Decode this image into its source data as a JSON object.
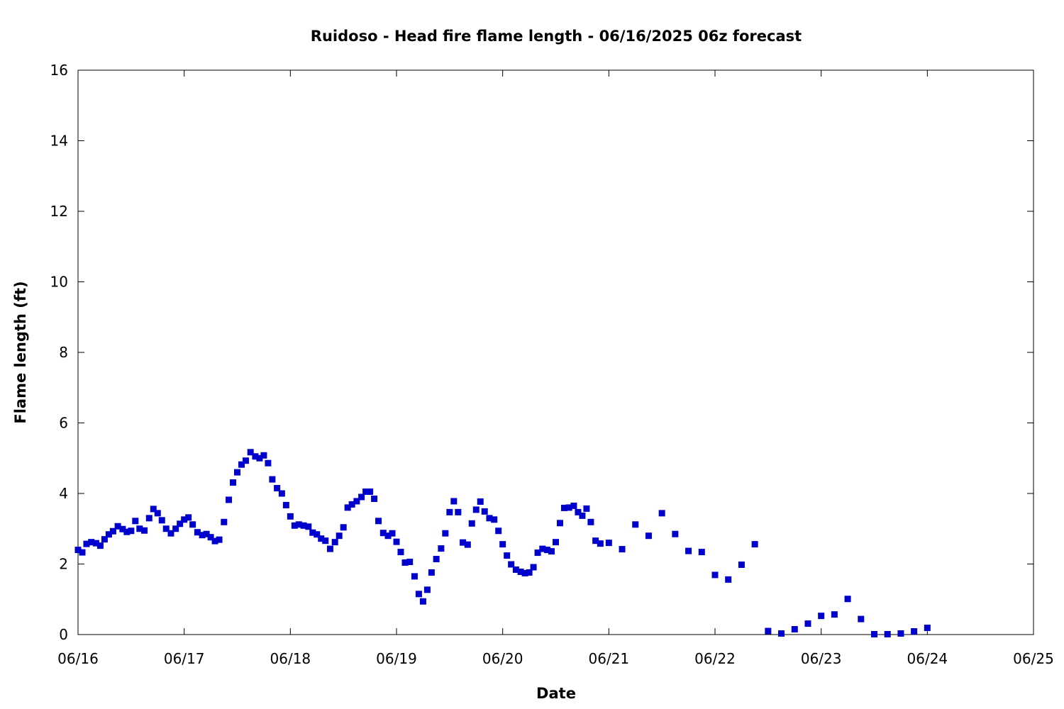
{
  "chart_data": {
    "type": "scatter",
    "title": "Ruidoso - Head fire flame length - 06/16/2025 06z forecast",
    "xlabel": "Date",
    "ylabel": "Flame length (ft)",
    "xlim": [
      "06/16",
      "06/25"
    ],
    "ylim": [
      0,
      16
    ],
    "xticks": [
      "06/16",
      "06/17",
      "06/18",
      "06/19",
      "06/20",
      "06/21",
      "06/22",
      "06/23",
      "06/24",
      "06/25"
    ],
    "yticks": [
      "0",
      "2",
      "4",
      "6",
      "8",
      "10",
      "12",
      "14",
      "16"
    ],
    "grid": false,
    "legend": "none",
    "marker": "square",
    "color": "#0000cc",
    "x_unit": "days from 06/16 00z",
    "series": [
      {
        "x": [
          0.0,
          0.04,
          0.08,
          0.125,
          0.17,
          0.21,
          0.25,
          0.29,
          0.33,
          0.375,
          0.42,
          0.46,
          0.5,
          0.54,
          0.58,
          0.625,
          0.67,
          0.71,
          0.75,
          0.79,
          0.83,
          0.875,
          0.92,
          0.96,
          1.0,
          1.04,
          1.08,
          1.125,
          1.17,
          1.21,
          1.25,
          1.29,
          1.33,
          1.375,
          1.42,
          1.46,
          1.5,
          1.54,
          1.58,
          1.625,
          1.67,
          1.71,
          1.75,
          1.79,
          1.83,
          1.875,
          1.92,
          1.96,
          2.0,
          2.04,
          2.08,
          2.125,
          2.17,
          2.21,
          2.25,
          2.29,
          2.33,
          2.375,
          2.42,
          2.46,
          2.5,
          2.54,
          2.58,
          2.625,
          2.67,
          2.71,
          2.75,
          2.79,
          2.83,
          2.875,
          2.92,
          2.96,
          3.0,
          3.04,
          3.08,
          3.125,
          3.17,
          3.21,
          3.25,
          3.29,
          3.33,
          3.375,
          3.42,
          3.46,
          3.5,
          3.54,
          3.58,
          3.625,
          3.67,
          3.71,
          3.75,
          3.79,
          3.83,
          3.875,
          3.92,
          3.96,
          4.0,
          4.04,
          4.08,
          4.125,
          4.17,
          4.21,
          4.25,
          4.29,
          4.33,
          4.375,
          4.42,
          4.46,
          4.5,
          4.54,
          4.58,
          4.625,
          4.67,
          4.71,
          4.75,
          4.79,
          4.83,
          4.875,
          4.92,
          5.0,
          5.125,
          5.25,
          5.375,
          5.5,
          5.625,
          5.75,
          5.875,
          6.0,
          6.125,
          6.25,
          6.375,
          6.5,
          6.625,
          6.75,
          6.875,
          7.0,
          7.125,
          7.25,
          7.375,
          7.5,
          7.625,
          7.75,
          7.875,
          8.0
        ],
        "y": [
          2.4,
          2.33,
          2.57,
          2.62,
          2.59,
          2.52,
          2.7,
          2.84,
          2.93,
          3.07,
          2.99,
          2.91,
          2.94,
          3.22,
          3.0,
          2.95,
          3.3,
          3.56,
          3.44,
          3.24,
          3.0,
          2.87,
          3.0,
          3.14,
          3.26,
          3.32,
          3.12,
          2.9,
          2.82,
          2.85,
          2.76,
          2.65,
          2.69,
          3.19,
          3.82,
          4.31,
          4.6,
          4.82,
          4.93,
          5.17,
          5.05,
          5.0,
          5.08,
          4.86,
          4.4,
          4.15,
          4.0,
          3.67,
          3.35,
          3.09,
          3.12,
          3.09,
          3.06,
          2.89,
          2.84,
          2.72,
          2.66,
          2.43,
          2.62,
          2.8,
          3.04,
          3.6,
          3.69,
          3.78,
          3.9,
          4.05,
          4.05,
          3.85,
          3.22,
          2.88,
          2.8,
          2.87,
          2.63,
          2.34,
          2.04,
          2.06,
          1.65,
          1.15,
          0.94,
          1.27,
          1.76,
          2.14,
          2.44,
          2.87,
          3.47,
          3.78,
          3.47,
          2.61,
          2.55,
          3.15,
          3.54,
          3.77,
          3.49,
          3.3,
          3.26,
          2.94,
          2.56,
          2.24,
          1.99,
          1.84,
          1.78,
          1.74,
          1.76,
          1.91,
          2.32,
          2.43,
          2.4,
          2.36,
          2.62,
          3.16,
          3.59,
          3.6,
          3.65,
          3.47,
          3.37,
          3.57,
          3.19,
          2.66,
          2.58,
          2.6,
          2.42,
          3.12,
          2.8,
          3.44,
          2.85,
          2.37,
          2.34,
          1.69,
          1.56,
          1.98,
          2.56,
          0.1,
          0.03,
          0.15,
          0.31,
          0.53,
          0.57,
          1.01,
          0.44,
          0.01,
          0.01,
          0.03,
          0.09,
          0.19
        ]
      }
    ]
  }
}
